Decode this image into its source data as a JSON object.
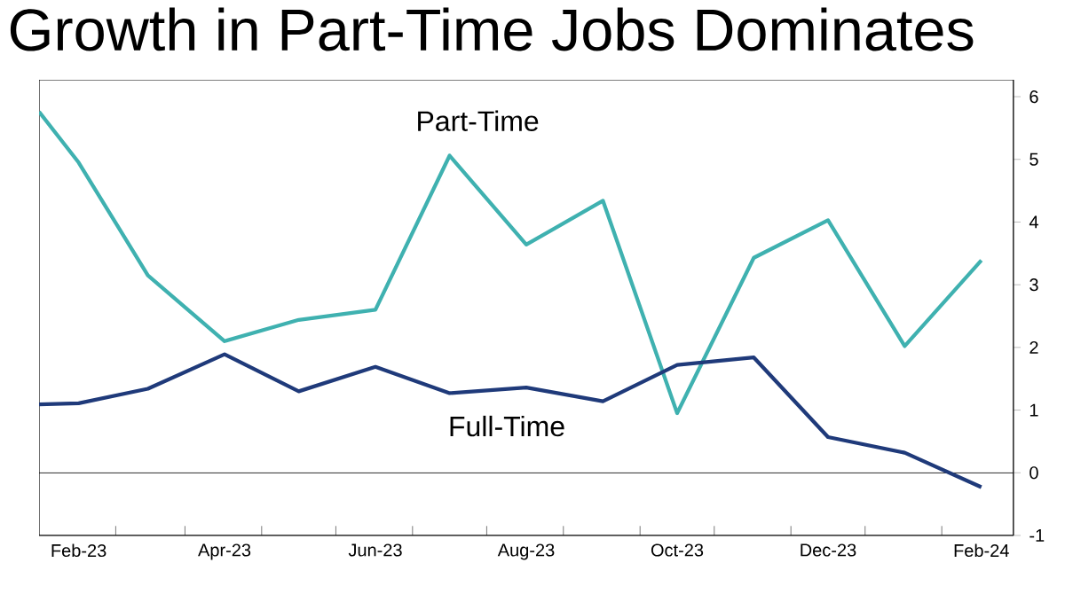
{
  "chart_data": {
    "type": "line",
    "title": "Growth in Part-Time Jobs Dominates",
    "x": [
      "2023-01-16",
      "2023-02",
      "2023-03",
      "2023-04",
      "2023-05",
      "2023-06",
      "2023-07",
      "2023-08",
      "2023-09",
      "2023-10",
      "2023-11",
      "2023-12",
      "2024-01",
      "2024-02"
    ],
    "series": [
      {
        "name": "Part-Time",
        "color": "#3fb1b0",
        "values": [
          5.76,
          4.95,
          3.15,
          2.1,
          2.44,
          2.6,
          5.06,
          3.64,
          4.34,
          0.95,
          3.43,
          4.03,
          2.02,
          3.39
        ]
      },
      {
        "name": "Full-Time",
        "color": "#1f3a7a",
        "values": [
          1.09,
          1.11,
          1.34,
          1.89,
          1.3,
          1.69,
          1.27,
          1.36,
          1.14,
          1.72,
          1.84,
          0.57,
          0.32,
          -0.23
        ]
      }
    ],
    "xlim": [
      "2023-01-16",
      "2024-02-14"
    ],
    "xticks": [
      {
        "value": "2023-02",
        "label": "Feb-23"
      },
      {
        "value": "2023-02-16",
        "label": null
      },
      {
        "value": "2023-03-16",
        "label": null
      },
      {
        "value": "2023-04",
        "label": "Apr-23"
      },
      {
        "value": "2023-04-16",
        "label": null
      },
      {
        "value": "2023-05-16",
        "label": null
      },
      {
        "value": "2023-06",
        "label": "Jun-23"
      },
      {
        "value": "2023-06-16",
        "label": null
      },
      {
        "value": "2023-07-16",
        "label": null
      },
      {
        "value": "2023-08",
        "label": "Aug-23"
      },
      {
        "value": "2023-08-16",
        "label": null
      },
      {
        "value": "2023-09-16",
        "label": null
      },
      {
        "value": "2023-10",
        "label": "Oct-23"
      },
      {
        "value": "2023-10-16",
        "label": null
      },
      {
        "value": "2023-11-16",
        "label": null
      },
      {
        "value": "2023-12",
        "label": "Dec-23"
      },
      {
        "value": "2023-12-16",
        "label": null
      },
      {
        "value": "2024-01-16",
        "label": null
      },
      {
        "value": "2024-02",
        "label": "Feb-24"
      }
    ],
    "ylim": [
      -1,
      6.27
    ],
    "yticks": [
      -1,
      0,
      1,
      2,
      3,
      4,
      5,
      6
    ],
    "ref_lines": [
      {
        "axis": "y",
        "value": 0,
        "color": "#000000"
      }
    ],
    "grid": false,
    "legend": false,
    "marker": "none",
    "line_style": "solid"
  }
}
